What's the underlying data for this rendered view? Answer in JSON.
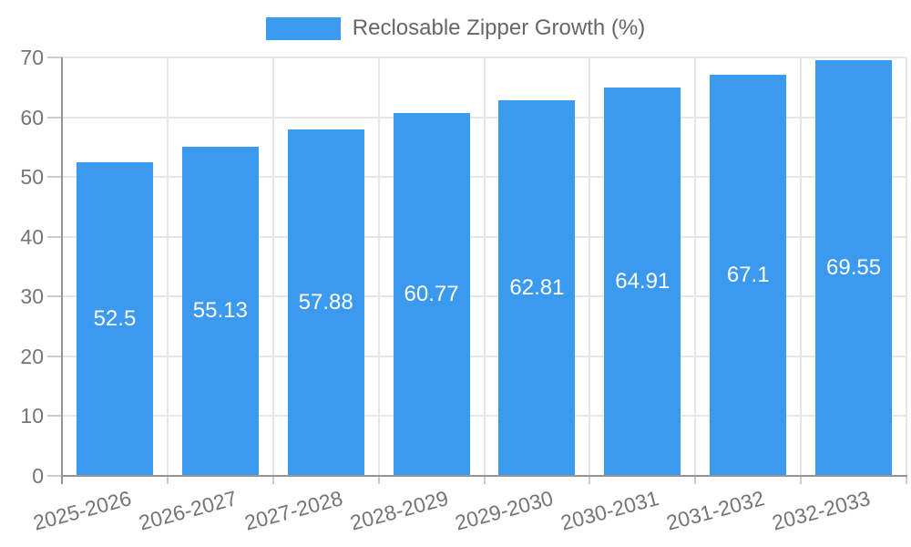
{
  "chart_data": {
    "type": "bar",
    "title": "",
    "legend": {
      "position": "top",
      "label": "Reclosable Zipper Growth (%)"
    },
    "categories": [
      "2025-2026",
      "2026-2027",
      "2027-2028",
      "2028-2029",
      "2029-2030",
      "2030-2031",
      "2031-2032",
      "2032-2033"
    ],
    "series": [
      {
        "name": "Reclosable Zipper Growth (%)",
        "values": [
          52.5,
          55.13,
          57.88,
          60.77,
          62.81,
          64.91,
          67.1,
          69.55
        ],
        "value_labels": [
          "52.5",
          "55.13",
          "57.88",
          "60.77",
          "62.81",
          "64.91",
          "67.1",
          "69.55"
        ]
      }
    ],
    "xlabel": "",
    "ylabel": "",
    "ylim": [
      0,
      70
    ],
    "ytick_values": [
      0,
      10,
      20,
      30,
      40,
      50,
      60,
      70
    ],
    "ytick_labels": [
      "0",
      "10",
      "20",
      "30",
      "40",
      "50",
      "60",
      "70"
    ],
    "grid": true,
    "colors": {
      "bar": "#3b99ee",
      "axis_text": "#757575",
      "legend_text": "#666666",
      "grid_line": "#e6e6e6",
      "axis_line": "#949494",
      "tick_mark": "#cccccc",
      "bar_label_text": "#ffffff",
      "background": "#ffffff"
    }
  }
}
